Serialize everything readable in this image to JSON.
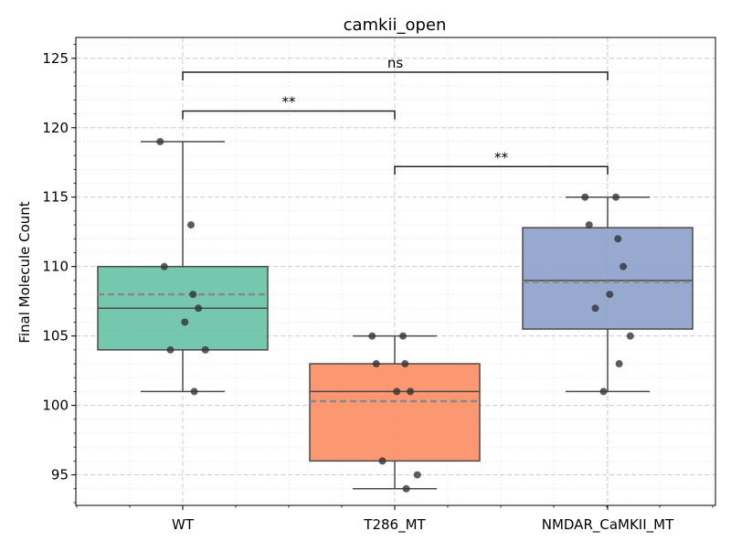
{
  "chart_data": {
    "type": "box",
    "title": "camkii_open",
    "xlabel": "",
    "ylabel": "Final Molecule Count",
    "ylim": [
      92.8,
      126.5
    ],
    "yticks": [
      95,
      100,
      105,
      110,
      115,
      120,
      125
    ],
    "grid": true,
    "categories": [
      "WT",
      "T286_MT",
      "NMDAR_CaMKII_MT"
    ],
    "colors": {
      "WT": "#66c2a5",
      "T286_MT": "#fc8d62",
      "NMDAR_CaMKII_MT": "#8da0cb"
    },
    "boxes": [
      {
        "category": "WT",
        "whisker_low": 101,
        "q1": 104,
        "median": 107,
        "mean": 108,
        "q3": 110,
        "whisker_high": 119
      },
      {
        "category": "T286_MT",
        "whisker_low": 94,
        "q1": 96,
        "median": 101,
        "mean": 100.3,
        "q3": 103,
        "whisker_high": 105
      },
      {
        "category": "NMDAR_CaMKII_MT",
        "whisker_low": 101,
        "q1": 105.5,
        "median": 109,
        "mean": 108.9,
        "q3": 112.8,
        "whisker_high": 115
      }
    ],
    "points": [
      {
        "category": "WT",
        "values": [
          119,
          113,
          110,
          108,
          107,
          106,
          104,
          104,
          101
        ]
      },
      {
        "category": "T286_MT",
        "values": [
          105,
          105,
          103,
          103,
          101,
          101,
          96,
          95,
          94
        ]
      },
      {
        "category": "NMDAR_CaMKII_MT",
        "values": [
          115,
          115,
          113,
          112,
          110,
          108,
          107,
          105,
          103,
          101
        ]
      }
    ],
    "annotations": [
      {
        "from": "WT",
        "to": "NMDAR_CaMKII_MT",
        "y": 124,
        "label": "ns"
      },
      {
        "from": "WT",
        "to": "T286_MT",
        "y": 121.2,
        "label": "**"
      },
      {
        "from": "T286_MT",
        "to": "NMDAR_CaMKII_MT",
        "y": 117.2,
        "label": "**"
      }
    ]
  }
}
